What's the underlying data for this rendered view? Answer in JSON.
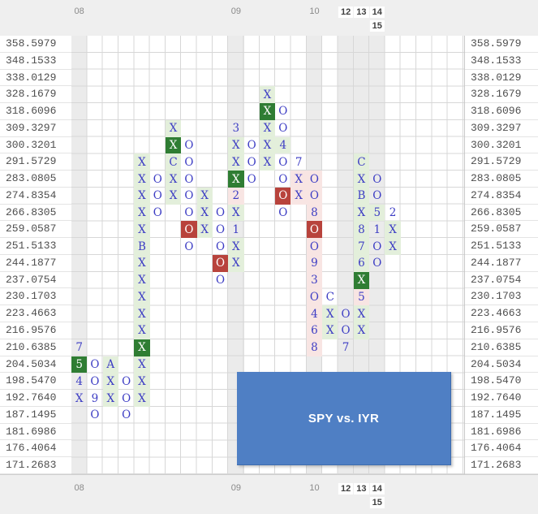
{
  "title": "SPY vs. IYR",
  "chart_data": {
    "type": "point-and-figure",
    "title": "SPY vs. IYR",
    "glyph_legend": {
      "X": "up-column mark",
      "O": "down-column mark",
      "digits_letters": "month markers 1-9=Jan-Sep A=Oct B=Nov C=Dec",
      "box-g": "dark-green new-high box",
      "box-r": "dark-red new-low box"
    },
    "price_levels": [
      "358.5979",
      "348.1533",
      "338.0129",
      "328.1679",
      "318.6096",
      "309.3297",
      "300.3201",
      "291.5729",
      "283.0805",
      "274.8354",
      "266.8305",
      "259.0587",
      "251.5133",
      "244.1877",
      "237.0754",
      "230.1703",
      "223.4663",
      "216.9576",
      "210.6385",
      "204.5034",
      "198.5470",
      "192.7640",
      "187.1495",
      "181.6986",
      "176.4064",
      "171.2683"
    ],
    "grid": {
      "cols": 25,
      "rows": 26,
      "gray_cols": [
        1,
        11,
        16,
        18,
        19,
        20
      ]
    },
    "years": [
      {
        "label": "08",
        "col": 1,
        "line": 1,
        "bold": false
      },
      {
        "label": "09",
        "col": 11,
        "line": 1,
        "bold": false
      },
      {
        "label": "10",
        "col": 16,
        "line": 1,
        "bold": false
      },
      {
        "label": "12",
        "col": 18,
        "line": 1,
        "bold": true
      },
      {
        "label": "13",
        "col": 19,
        "line": 1,
        "bold": true
      },
      {
        "label": "14",
        "col": 20,
        "line": 1,
        "bold": true
      },
      {
        "label": "15",
        "col": 20,
        "line": 2,
        "bold": true
      }
    ],
    "cells": [
      [
        13,
        4,
        "X",
        "g"
      ],
      [
        13,
        5,
        "X",
        "G"
      ],
      [
        14,
        5,
        "O",
        "w"
      ],
      [
        7,
        6,
        "X",
        "g"
      ],
      [
        11,
        6,
        "3",
        "w"
      ],
      [
        13,
        6,
        "X",
        "g"
      ],
      [
        14,
        6,
        "O",
        "w"
      ],
      [
        7,
        7,
        "X",
        "G"
      ],
      [
        8,
        7,
        "O",
        "w"
      ],
      [
        11,
        7,
        "X",
        "g"
      ],
      [
        12,
        7,
        "O",
        "w"
      ],
      [
        13,
        7,
        "X",
        "g"
      ],
      [
        14,
        7,
        "4",
        "g"
      ],
      [
        5,
        8,
        "X",
        "g"
      ],
      [
        7,
        8,
        "C",
        "g"
      ],
      [
        8,
        8,
        "O",
        "w"
      ],
      [
        11,
        8,
        "X",
        "g"
      ],
      [
        12,
        8,
        "O",
        "w"
      ],
      [
        13,
        8,
        "X",
        "g"
      ],
      [
        14,
        8,
        "O",
        "w"
      ],
      [
        15,
        8,
        "7",
        "w"
      ],
      [
        19,
        8,
        "C",
        "g"
      ],
      [
        5,
        9,
        "X",
        "g"
      ],
      [
        6,
        9,
        "O",
        "w"
      ],
      [
        7,
        9,
        "X",
        "g"
      ],
      [
        8,
        9,
        "O",
        "w"
      ],
      [
        11,
        9,
        "X",
        "G"
      ],
      [
        12,
        9,
        "O",
        "w"
      ],
      [
        14,
        9,
        "O",
        "w"
      ],
      [
        15,
        9,
        "X",
        "p"
      ],
      [
        16,
        9,
        "O",
        "p"
      ],
      [
        19,
        9,
        "X",
        "g"
      ],
      [
        20,
        9,
        "O",
        "w"
      ],
      [
        5,
        10,
        "X",
        "g"
      ],
      [
        6,
        10,
        "O",
        "w"
      ],
      [
        7,
        10,
        "X",
        "g"
      ],
      [
        8,
        10,
        "O",
        "w"
      ],
      [
        9,
        10,
        "X",
        "g"
      ],
      [
        11,
        10,
        "2",
        "p"
      ],
      [
        14,
        10,
        "O",
        "R"
      ],
      [
        15,
        10,
        "X",
        "p"
      ],
      [
        16,
        10,
        "O",
        "p"
      ],
      [
        19,
        10,
        "B",
        "g"
      ],
      [
        20,
        10,
        "O",
        "w"
      ],
      [
        5,
        11,
        "X",
        "g"
      ],
      [
        6,
        11,
        "O",
        "w"
      ],
      [
        8,
        11,
        "O",
        "w"
      ],
      [
        9,
        11,
        "X",
        "g"
      ],
      [
        10,
        11,
        "O",
        "w"
      ],
      [
        11,
        11,
        "X",
        "g"
      ],
      [
        14,
        11,
        "O",
        "w"
      ],
      [
        16,
        11,
        "8",
        "p"
      ],
      [
        19,
        11,
        "X",
        "g"
      ],
      [
        20,
        11,
        "5",
        "g"
      ],
      [
        21,
        11,
        "2",
        "w"
      ],
      [
        5,
        12,
        "X",
        "g"
      ],
      [
        8,
        12,
        "O",
        "R"
      ],
      [
        9,
        12,
        "X",
        "g"
      ],
      [
        10,
        12,
        "O",
        "w"
      ],
      [
        11,
        12,
        "1",
        "w"
      ],
      [
        16,
        12,
        "O",
        "R"
      ],
      [
        19,
        12,
        "8",
        "g"
      ],
      [
        20,
        12,
        "1",
        "w"
      ],
      [
        21,
        12,
        "X",
        "g"
      ],
      [
        5,
        13,
        "B",
        "g"
      ],
      [
        8,
        13,
        "O",
        "w"
      ],
      [
        10,
        13,
        "O",
        "w"
      ],
      [
        11,
        13,
        "X",
        "g"
      ],
      [
        16,
        13,
        "O",
        "p"
      ],
      [
        19,
        13,
        "7",
        "g"
      ],
      [
        20,
        13,
        "O",
        "w"
      ],
      [
        21,
        13,
        "X",
        "g"
      ],
      [
        5,
        14,
        "X",
        "g"
      ],
      [
        10,
        14,
        "O",
        "R"
      ],
      [
        11,
        14,
        "X",
        "g"
      ],
      [
        16,
        14,
        "9",
        "p"
      ],
      [
        19,
        14,
        "6",
        "g"
      ],
      [
        20,
        14,
        "O",
        "w"
      ],
      [
        5,
        15,
        "X",
        "g"
      ],
      [
        10,
        15,
        "O",
        "w"
      ],
      [
        16,
        15,
        "3",
        "p"
      ],
      [
        19,
        15,
        "X",
        "G"
      ],
      [
        5,
        16,
        "X",
        "g"
      ],
      [
        16,
        16,
        "O",
        "p"
      ],
      [
        17,
        16,
        "C",
        "w"
      ],
      [
        19,
        16,
        "5",
        "p"
      ],
      [
        5,
        17,
        "X",
        "g"
      ],
      [
        16,
        17,
        "4",
        "p"
      ],
      [
        17,
        17,
        "X",
        "g"
      ],
      [
        18,
        17,
        "O",
        "w"
      ],
      [
        19,
        17,
        "X",
        "g"
      ],
      [
        5,
        18,
        "X",
        "g"
      ],
      [
        16,
        18,
        "6",
        "p"
      ],
      [
        17,
        18,
        "X",
        "g"
      ],
      [
        18,
        18,
        "O",
        "w"
      ],
      [
        19,
        18,
        "X",
        "g"
      ],
      [
        1,
        19,
        "7",
        "w"
      ],
      [
        5,
        19,
        "X",
        "G"
      ],
      [
        16,
        19,
        "8",
        "p"
      ],
      [
        18,
        19,
        "7",
        "w"
      ],
      [
        1,
        20,
        "5",
        "G"
      ],
      [
        2,
        20,
        "O",
        "w"
      ],
      [
        3,
        20,
        "A",
        "g"
      ],
      [
        5,
        20,
        "X",
        "g"
      ],
      [
        1,
        21,
        "4",
        "w"
      ],
      [
        2,
        21,
        "O",
        "w"
      ],
      [
        3,
        21,
        "X",
        "g"
      ],
      [
        4,
        21,
        "O",
        "w"
      ],
      [
        5,
        21,
        "X",
        "g"
      ],
      [
        1,
        22,
        "X",
        "w"
      ],
      [
        2,
        22,
        "9",
        "w"
      ],
      [
        3,
        22,
        "X",
        "g"
      ],
      [
        4,
        22,
        "O",
        "w"
      ],
      [
        5,
        22,
        "X",
        "g"
      ],
      [
        2,
        23,
        "O",
        "w"
      ],
      [
        4,
        23,
        "O",
        "w"
      ]
    ]
  }
}
